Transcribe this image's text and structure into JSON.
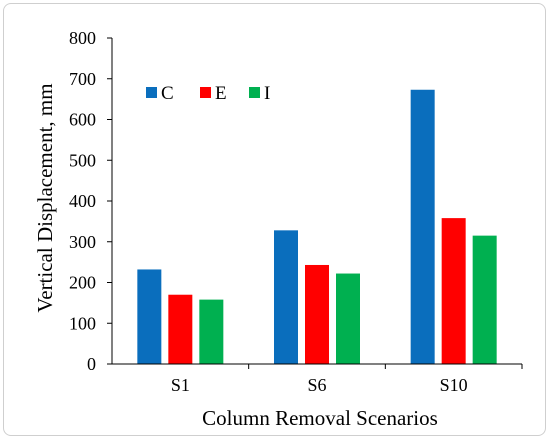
{
  "chart_data": {
    "type": "bar",
    "title": "",
    "xlabel": "Column Removal Scenarios",
    "ylabel": "Vertical Displacement, mm",
    "categories": [
      "S1",
      "S6",
      "S10"
    ],
    "series": [
      {
        "name": "C",
        "color": "#0A6EBD",
        "values": [
          232,
          328,
          673
        ]
      },
      {
        "name": "E",
        "color": "#FF0000",
        "values": [
          170,
          243,
          358
        ]
      },
      {
        "name": "I",
        "color": "#00B050",
        "values": [
          158,
          222,
          315
        ]
      }
    ],
    "ylim": [
      0,
      800
    ],
    "yticks": [
      "0",
      "100",
      "200",
      "300",
      "400",
      "500",
      "600",
      "700",
      "800"
    ],
    "grid": false,
    "legend_position": "top-left"
  }
}
